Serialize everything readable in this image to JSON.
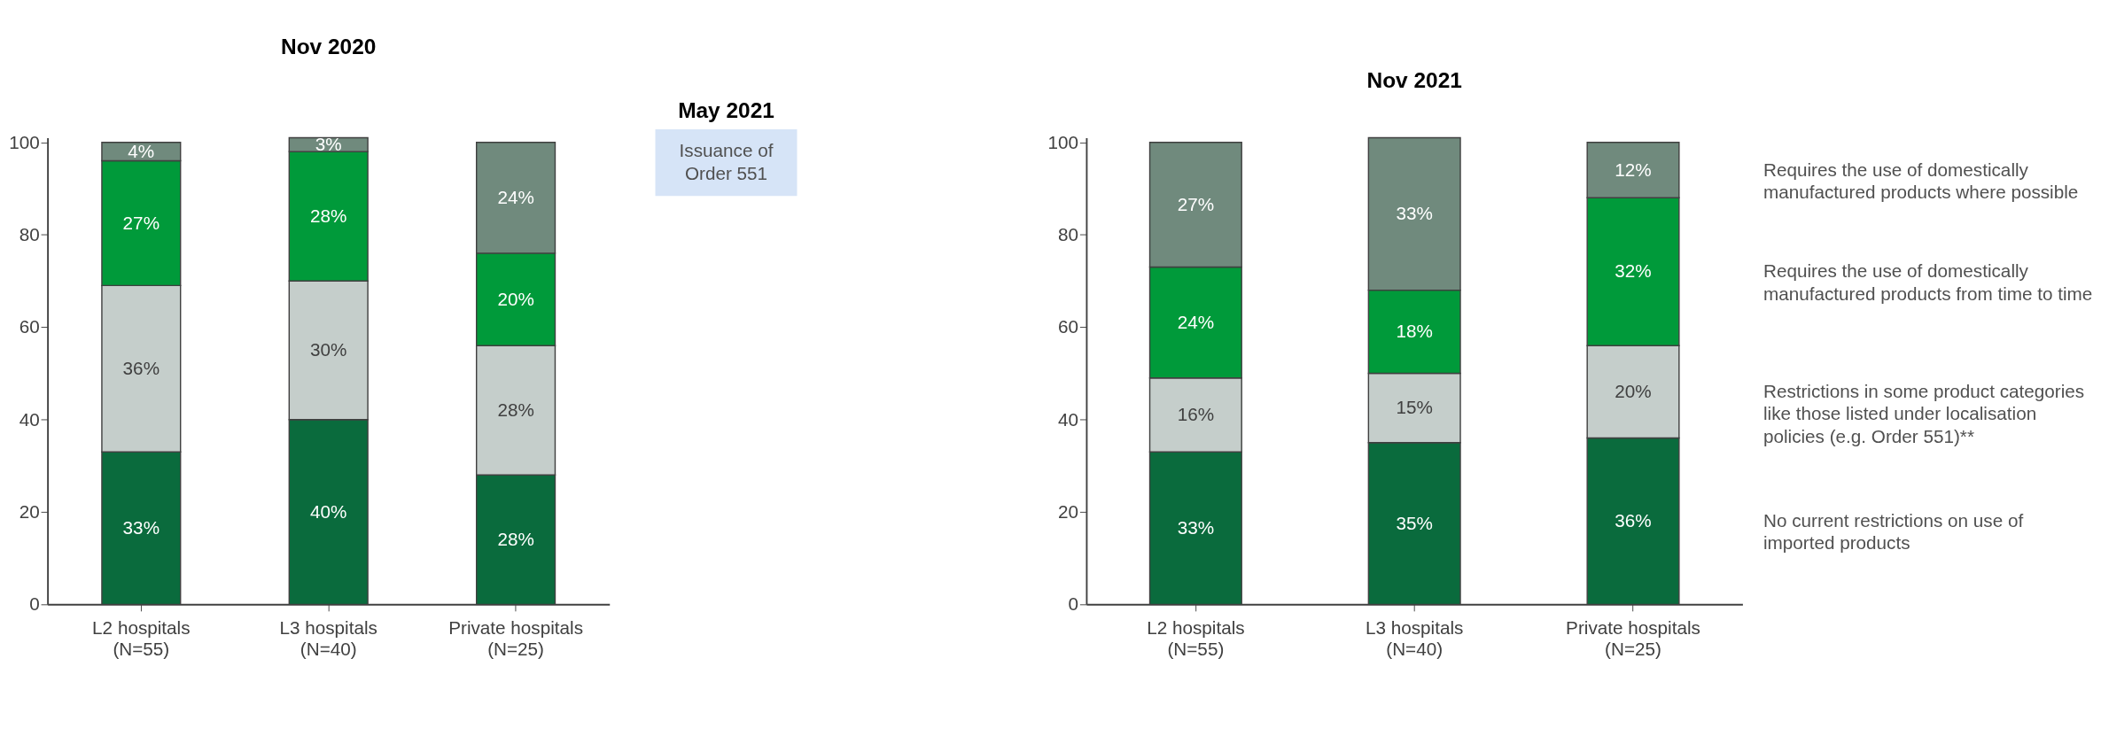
{
  "chart_data": [
    {
      "type": "bar",
      "title": "Nov 2020",
      "stacked": true,
      "categories": [
        "L2 hospitals (N=55)",
        "L3 hospitals (N=40)",
        "Private hospitals (N=25)"
      ],
      "series": [
        {
          "color": "#0a6b3d",
          "values": [
            33,
            40,
            28
          ],
          "value_labels": [
            "33%",
            "40%",
            "28%"
          ]
        },
        {
          "color": "#c5cecb",
          "values": [
            36,
            30,
            28
          ],
          "value_labels": [
            "36%",
            "30%",
            "28%"
          ]
        },
        {
          "color": "#009a3a",
          "values": [
            27,
            28,
            20
          ],
          "value_labels": [
            "27%",
            "28%",
            "20%"
          ]
        },
        {
          "color": "#708a7d",
          "values": [
            4,
            3,
            24
          ],
          "value_labels": [
            "4%",
            "3%",
            "24%"
          ]
        }
      ],
      "ylim": [
        0,
        101
      ],
      "yticks": [
        0,
        20,
        40,
        60,
        80,
        100
      ],
      "grid": false,
      "annotations": [
        "May 2021",
        "Issuance of Order 551"
      ]
    },
    {
      "type": "bar",
      "title": "Nov 2021",
      "stacked": true,
      "categories": [
        "L2 hospitals (N=55)",
        "L3 hospitals (N=40)",
        "Private hospitals (N=25)"
      ],
      "series": [
        {
          "name": "No current restrictions on use of imported products",
          "color": "#0a6b3d",
          "values": [
            33,
            35,
            36
          ],
          "value_labels": [
            "33%",
            "35%",
            "36%"
          ]
        },
        {
          "name": "Restrictions in some product categories like those listed under localisation policies (e.g. Order 551)**",
          "color": "#c5cecb",
          "values": [
            16,
            15,
            20
          ],
          "value_labels": [
            "16%",
            "15%",
            "20%"
          ]
        },
        {
          "name": "Requires the use of domestically manufactured products from time to time",
          "color": "#009a3a",
          "values": [
            24,
            18,
            32
          ],
          "value_labels": [
            "24%",
            "18%",
            "32%"
          ]
        },
        {
          "name": "Requires the use of domestically manufactured products where possible",
          "color": "#708a7d",
          "values": [
            27,
            33,
            12
          ],
          "value_labels": [
            "27%",
            "33%",
            "12%"
          ]
        }
      ],
      "ylim": [
        0,
        101
      ],
      "yticks": [
        0,
        20,
        40,
        60,
        80,
        100
      ],
      "grid": false,
      "legend": "right"
    }
  ]
}
